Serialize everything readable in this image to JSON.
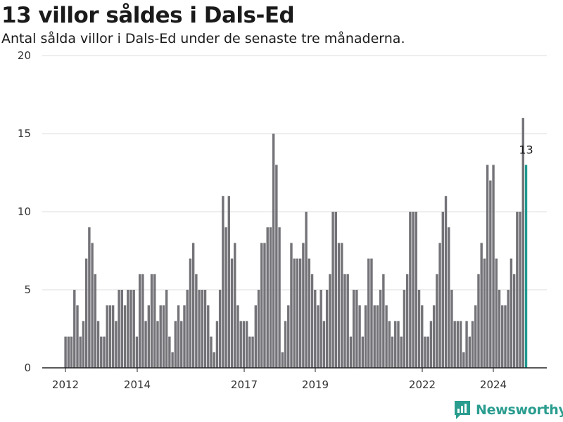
{
  "title": "13 villor såldes i Dals-Ed",
  "subtitle": "Antal sålda villor i Dals-Ed under de senaste tre månaderna.",
  "brand": {
    "name": "Newsworthy",
    "icon": "newsworthy-logo-icon",
    "color": "#2a9d8f"
  },
  "colors": {
    "bar": "#737378",
    "highlight": "#1e9a8f",
    "grid": "#dddddd",
    "axis": "#222222"
  },
  "chart_data": {
    "type": "bar",
    "title": "13 villor såldes i Dals-Ed",
    "xlabel": "",
    "ylabel": "",
    "x_axis": "monthly, rolling three-month totals",
    "x_start": "2012-01",
    "ylim": [
      0,
      20
    ],
    "yticks": [
      0,
      5,
      10,
      15,
      20
    ],
    "xticks": [
      "2012",
      "2014",
      "2017",
      "2019",
      "2022",
      "2024"
    ],
    "grid": true,
    "highlight_last": true,
    "last_value_label": "13",
    "values": [
      2,
      2,
      2,
      5,
      4,
      2,
      3,
      7,
      9,
      8,
      6,
      3,
      2,
      2,
      4,
      4,
      4,
      3,
      5,
      5,
      4,
      5,
      5,
      5,
      2,
      6,
      6,
      3,
      4,
      6,
      6,
      3,
      4,
      4,
      5,
      2,
      1,
      3,
      4,
      3,
      4,
      5,
      7,
      8,
      6,
      5,
      5,
      5,
      4,
      2,
      1,
      3,
      5,
      11,
      9,
      11,
      7,
      8,
      4,
      3,
      3,
      3,
      2,
      2,
      4,
      5,
      8,
      8,
      9,
      9,
      15,
      13,
      9,
      1,
      3,
      4,
      8,
      7,
      7,
      7,
      8,
      10,
      7,
      6,
      5,
      4,
      5,
      3,
      5,
      6,
      10,
      10,
      8,
      8,
      6,
      6,
      2,
      5,
      5,
      4,
      2,
      4,
      7,
      7,
      4,
      4,
      5,
      6,
      4,
      3,
      2,
      3,
      3,
      2,
      5,
      6,
      10,
      10,
      10,
      5,
      4,
      2,
      2,
      3,
      4,
      6,
      8,
      10,
      11,
      9,
      5,
      3,
      3,
      3,
      1,
      3,
      2,
      3,
      4,
      6,
      8,
      7,
      13,
      12,
      13,
      7,
      5,
      4,
      4,
      5,
      7,
      6,
      10,
      10,
      16,
      13
    ]
  }
}
